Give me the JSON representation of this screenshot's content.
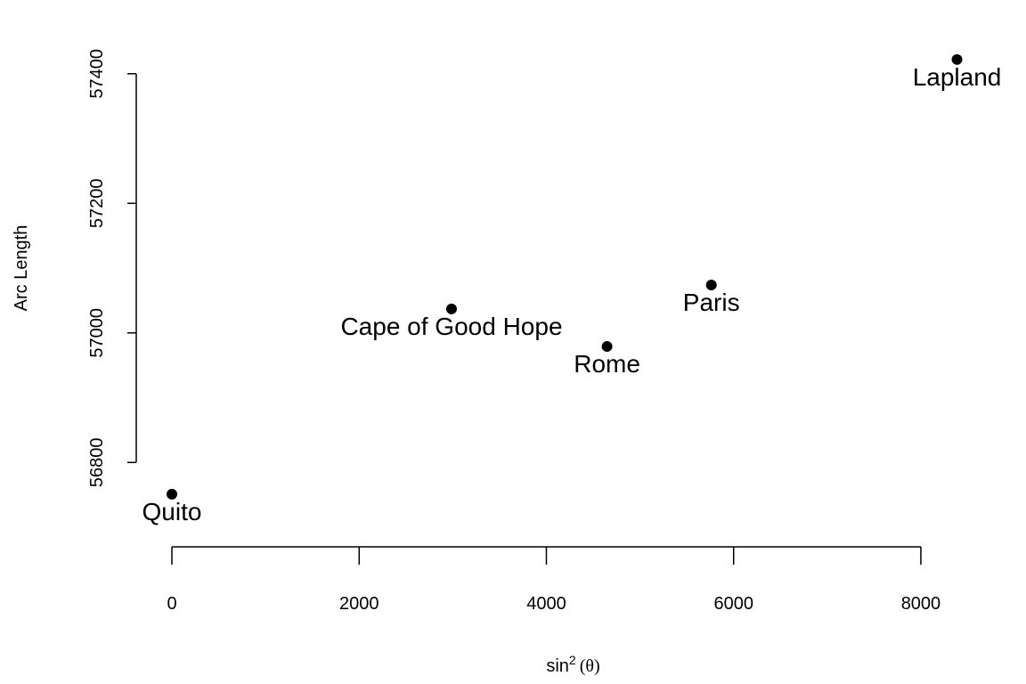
{
  "chart_data": {
    "type": "scatter",
    "title": "",
    "xlabel_base": "sin",
    "xlabel_sup": "2",
    "xlabel_arg": "(θ)",
    "ylabel": "Arc Length",
    "xlim": [
      0,
      8400
    ],
    "ylim": [
      56700,
      57430
    ],
    "xticks": [
      0,
      2000,
      4000,
      6000,
      8000
    ],
    "yticks": [
      56800,
      57000,
      57200,
      57400
    ],
    "grid": false,
    "legend": "none",
    "points": [
      {
        "label": "Quito",
        "x": 0,
        "y": 56751
      },
      {
        "label": "Cape of Good Hope",
        "x": 2987,
        "y": 57037
      },
      {
        "label": "Rome",
        "x": 4648,
        "y": 56979
      },
      {
        "label": "Paris",
        "x": 5762,
        "y": 57074
      },
      {
        "label": "Lapland",
        "x": 8386,
        "y": 57422
      }
    ]
  }
}
